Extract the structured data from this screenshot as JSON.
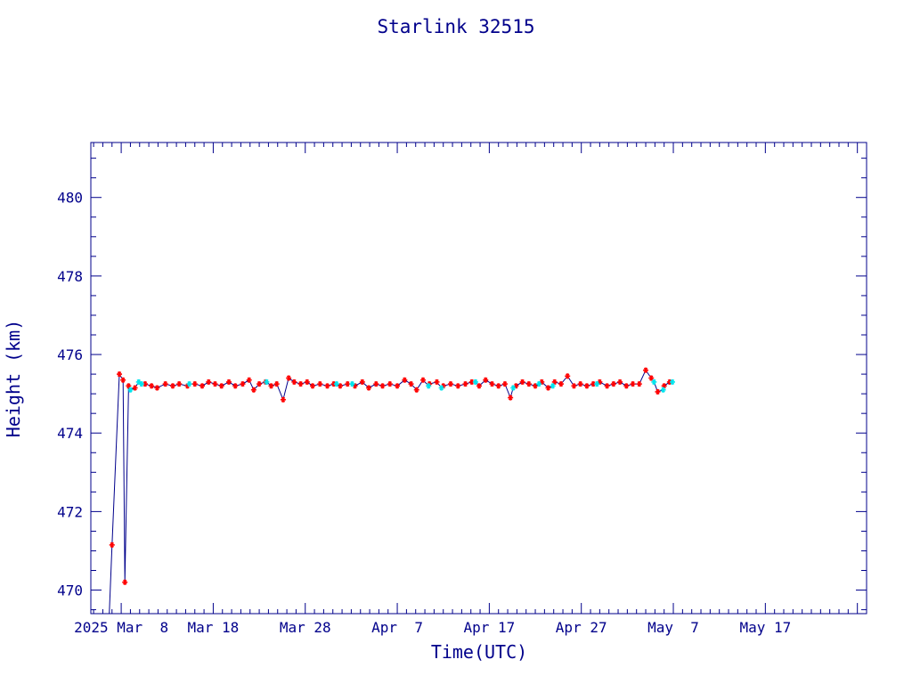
{
  "chart_data": {
    "type": "line",
    "title": "Starlink 32515",
    "xlabel": "Time(UTC)",
    "ylabel": "Height (km)",
    "x_tick_labels": [
      "2025 Mar  8",
      "Mar 18",
      "Mar 28",
      "Apr  7",
      "Apr 17",
      "Apr 27",
      "May  7",
      "May 17"
    ],
    "y_tick_labels": [
      "470",
      "472",
      "474",
      "476",
      "478",
      "480"
    ],
    "ylim": [
      469.4,
      481.4
    ],
    "xlim_days_from_mar8": [
      -3.3,
      81
    ],
    "grid": false,
    "colors": {
      "axis": "#00008b",
      "line": "#00008b",
      "marker_primary": "#ff0000",
      "marker_secondary": "#00e5ee"
    },
    "series": [
      {
        "marker": "star",
        "points": [
          [
            -1.3,
            469.4
          ],
          [
            -1.0,
            471.15
          ],
          [
            -0.2,
            475.5
          ],
          [
            0.2,
            475.35
          ],
          [
            0.4,
            470.2
          ],
          [
            0.8,
            475.2
          ],
          [
            1.5,
            475.15
          ],
          [
            2.6,
            475.25
          ],
          [
            3.3,
            475.2
          ],
          [
            3.9,
            475.15
          ],
          [
            4.8,
            475.25
          ],
          [
            5.6,
            475.2
          ],
          [
            6.3,
            475.25
          ],
          [
            7.2,
            475.2
          ],
          [
            8.0,
            475.25
          ],
          [
            8.8,
            475.2
          ],
          [
            9.5,
            475.3
          ],
          [
            10.2,
            475.25
          ],
          [
            10.9,
            475.2
          ],
          [
            11.7,
            475.3
          ],
          [
            12.4,
            475.2
          ],
          [
            13.2,
            475.25
          ],
          [
            13.9,
            475.35
          ],
          [
            14.4,
            475.1
          ],
          [
            15.0,
            475.25
          ],
          [
            15.7,
            475.3
          ],
          [
            16.3,
            475.2
          ],
          [
            16.9,
            475.25
          ],
          [
            17.6,
            474.85
          ],
          [
            18.2,
            475.4
          ],
          [
            18.8,
            475.3
          ],
          [
            19.5,
            475.25
          ],
          [
            20.2,
            475.3
          ],
          [
            20.8,
            475.2
          ],
          [
            21.6,
            475.25
          ],
          [
            22.4,
            475.2
          ],
          [
            23.1,
            475.25
          ],
          [
            23.8,
            475.2
          ],
          [
            24.6,
            475.25
          ],
          [
            25.4,
            475.2
          ],
          [
            26.2,
            475.3
          ],
          [
            26.9,
            475.15
          ],
          [
            27.7,
            475.25
          ],
          [
            28.4,
            475.2
          ],
          [
            29.2,
            475.25
          ],
          [
            30.0,
            475.2
          ],
          [
            30.8,
            475.35
          ],
          [
            31.5,
            475.25
          ],
          [
            32.1,
            475.1
          ],
          [
            32.8,
            475.35
          ],
          [
            33.5,
            475.25
          ],
          [
            34.3,
            475.3
          ],
          [
            35.0,
            475.2
          ],
          [
            35.8,
            475.25
          ],
          [
            36.6,
            475.2
          ],
          [
            37.4,
            475.25
          ],
          [
            38.1,
            475.3
          ],
          [
            38.9,
            475.2
          ],
          [
            39.6,
            475.35
          ],
          [
            40.3,
            475.25
          ],
          [
            41.0,
            475.2
          ],
          [
            41.7,
            475.25
          ],
          [
            42.3,
            474.9
          ],
          [
            42.9,
            475.2
          ],
          [
            43.6,
            475.3
          ],
          [
            44.3,
            475.25
          ],
          [
            45.0,
            475.2
          ],
          [
            45.7,
            475.3
          ],
          [
            46.4,
            475.15
          ],
          [
            47.1,
            475.3
          ],
          [
            47.8,
            475.25
          ],
          [
            48.5,
            475.45
          ],
          [
            49.2,
            475.2
          ],
          [
            49.9,
            475.25
          ],
          [
            50.6,
            475.2
          ],
          [
            51.3,
            475.25
          ],
          [
            52.0,
            475.3
          ],
          [
            52.8,
            475.2
          ],
          [
            53.5,
            475.25
          ],
          [
            54.2,
            475.3
          ],
          [
            54.9,
            475.2
          ],
          [
            55.6,
            475.25
          ],
          [
            56.3,
            475.25
          ],
          [
            57.0,
            475.6
          ],
          [
            57.6,
            475.4
          ],
          [
            58.3,
            475.05
          ],
          [
            59.0,
            475.2
          ],
          [
            59.6,
            475.3
          ]
        ]
      },
      {
        "marker": "star",
        "points": [
          [
            1.0,
            475.1
          ],
          [
            1.9,
            475.3
          ],
          [
            2.2,
            475.25
          ],
          [
            7.4,
            475.25
          ],
          [
            15.8,
            475.3
          ],
          [
            23.4,
            475.25
          ],
          [
            25.1,
            475.25
          ],
          [
            33.4,
            475.2
          ],
          [
            34.8,
            475.15
          ],
          [
            38.5,
            475.3
          ],
          [
            42.6,
            475.15
          ],
          [
            45.4,
            475.25
          ],
          [
            46.9,
            475.2
          ],
          [
            51.7,
            475.25
          ],
          [
            57.9,
            475.3
          ],
          [
            58.9,
            475.1
          ],
          [
            59.9,
            475.3
          ]
        ]
      }
    ]
  }
}
